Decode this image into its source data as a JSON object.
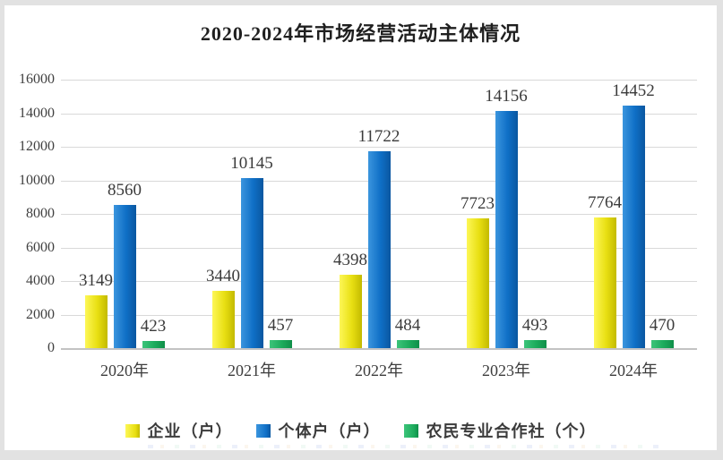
{
  "page": {
    "frame_color": "#e2e2e2",
    "canvas_color": "#ffffff"
  },
  "title": "2020-2024年市场经营活动主体情况",
  "chart_data": {
    "type": "bar",
    "title": "2020-2024年市场经营活动主体情况",
    "categories": [
      "2020年",
      "2021年",
      "2022年",
      "2023年",
      "2024年"
    ],
    "series": [
      {
        "name": "企业（户）",
        "values": [
          3149,
          3440,
          4398,
          7723,
          7764
        ],
        "color": "#e8df12",
        "color_light": "#fdf757",
        "color_dark": "#c3ba00"
      },
      {
        "name": "个体户（户）",
        "values": [
          8560,
          10145,
          11722,
          14156,
          14452
        ],
        "color": "#0f6fc6",
        "color_light": "#3b95de",
        "color_dark": "#0a57a0"
      },
      {
        "name": "农民专业合作社（个）",
        "values": [
          423,
          457,
          484,
          493,
          470
        ],
        "color": "#1cab5c",
        "color_light": "#3cc47a",
        "color_dark": "#0f8f49"
      }
    ],
    "xlabel": "",
    "ylabel": "",
    "ylim": [
      0,
      16000
    ],
    "ystep": 2000,
    "grid": true,
    "legend_position": "bottom",
    "y_tick_labels": [
      "0",
      "2000",
      "4000",
      "6000",
      "8000",
      "10000",
      "12000",
      "14000",
      "16000"
    ],
    "style": {
      "grid_color": "#d9d9d9",
      "baseline_color": "#c3c3c3",
      "tick_label_color": "#404040",
      "data_label_color": "#3b3b3b",
      "title_color": "#1f1f1f"
    }
  }
}
